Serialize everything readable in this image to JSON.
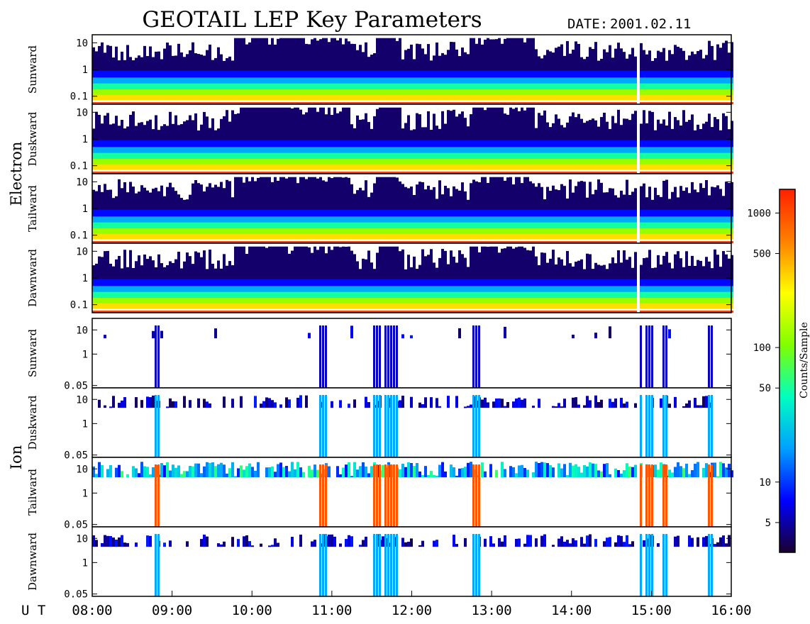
{
  "title": "GEOTAIL LEP Key Parameters",
  "date_label": "DATE:",
  "date_value": "2001.02.11",
  "x_axis_label": "U T",
  "colorbar_label": "Counts/Sample",
  "colors": {
    "background": "#ffffff",
    "frame": "#000000",
    "data_gap": "#ffffff"
  },
  "chart_data": {
    "type": "heatmap",
    "x_ticks": [
      "08:00",
      "09:00",
      "10:00",
      "11:00",
      "12:00",
      "13:00",
      "14:00",
      "15:00",
      "16:00"
    ],
    "x_range": [
      "08:00",
      "16:00"
    ],
    "colorbar": {
      "scale": "log",
      "range": [
        3,
        1500
      ],
      "ticks": [
        5,
        10,
        50,
        100,
        500,
        1000
      ],
      "tick_labels": [
        "5",
        "10",
        "50",
        "100",
        "500",
        "1000"
      ],
      "colormap": [
        "#1a0030",
        "#0000ff",
        "#00a0ff",
        "#00ffc0",
        "#80ff00",
        "#ffff00",
        "#ff8000",
        "#ff2000"
      ]
    },
    "data_gaps": [
      {
        "from": "14:48",
        "to": "14:51"
      }
    ],
    "groups": [
      {
        "name": "Electron",
        "y_scale": "log",
        "y_range": [
          0.05,
          20
        ],
        "y_ticks": [
          0.1,
          1,
          10
        ],
        "y_tick_labels": [
          "0.1",
          "1",
          "10"
        ],
        "panels": [
          "Sunward",
          "Duskward",
          "Tailward",
          "Dawnward"
        ]
      },
      {
        "name": "Ion",
        "y_scale": "log",
        "y_range": [
          0.04,
          30
        ],
        "y_ticks": [
          0.05,
          1,
          10
        ],
        "y_tick_labels": [
          "0.05",
          "1",
          "10"
        ],
        "panels": [
          "Sunward",
          "Duskward",
          "Tailward",
          "Dawnward"
        ]
      }
    ]
  }
}
